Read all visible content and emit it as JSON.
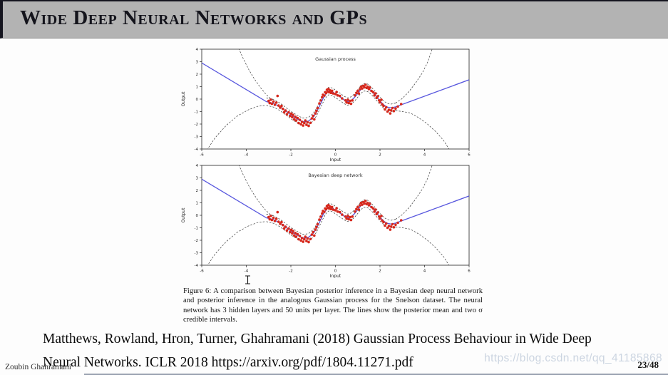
{
  "header": {
    "title": "Wide Deep Neural Networks and GPs"
  },
  "figure": {
    "caption": "Figure 6:  A comparison between Bayesian posterior inference in a Bayesian deep neural network and posterior inference in the analogous Gaussian process for the Snelson dataset. The neural network has 3 hidden layers and 50 units per layer. The lines show the posterior mean and two σ credible intervals."
  },
  "citation": {
    "lines": [
      "Matthews, Rowland, Hron, Turner, Ghahramani (2018) Gaussian Process Behaviour in Wide Deep",
      "Neural Networks. ICLR 2018 https://arxiv.org/pdf/1804.11271.pdf"
    ]
  },
  "watermark": "https://blog.csdn.net/qq_41185868",
  "footer": {
    "author": "Zoubin Ghahramani",
    "page": "23/48"
  },
  "chart_data": {
    "type": "scatter",
    "charts": [
      {
        "title": "Gaussian process"
      },
      {
        "title": "Bayesian deep network"
      }
    ],
    "shared": {
      "xlabel": "Input",
      "ylabel": "Output",
      "xlim": [
        -6,
        6
      ],
      "ylim": [
        -4,
        4
      ],
      "xticks": [
        -6,
        -4,
        -2,
        0,
        2,
        4,
        6
      ],
      "yticks": [
        -4,
        -3,
        -2,
        -1,
        0,
        1,
        2,
        3,
        4
      ],
      "grid": false,
      "colors": {
        "mean_line": "#5857de",
        "points": "#d6281c",
        "dashed": "#3a3a3a",
        "frame": "#222222"
      },
      "mean_line": [
        [
          -6,
          2.9
        ],
        [
          -3.1,
          -0.2
        ],
        [
          -2.8,
          -0.33
        ],
        [
          -2.5,
          -0.6
        ],
        [
          -2.2,
          -1.0
        ],
        [
          -1.9,
          -1.4
        ],
        [
          -1.7,
          -1.6
        ],
        [
          -1.5,
          -1.8
        ],
        [
          -1.35,
          -1.82
        ],
        [
          -1.2,
          -1.75
        ],
        [
          -1.0,
          -1.45
        ],
        [
          -0.85,
          -1.05
        ],
        [
          -0.7,
          -0.5
        ],
        [
          -0.55,
          0.05
        ],
        [
          -0.4,
          0.5
        ],
        [
          -0.3,
          0.65
        ],
        [
          -0.15,
          0.6
        ],
        [
          0.0,
          0.42
        ],
        [
          0.2,
          0.18
        ],
        [
          0.4,
          -0.08
        ],
        [
          0.55,
          -0.2
        ],
        [
          0.7,
          -0.12
        ],
        [
          0.85,
          0.12
        ],
        [
          1.0,
          0.45
        ],
        [
          1.15,
          0.78
        ],
        [
          1.3,
          0.95
        ],
        [
          1.45,
          0.9
        ],
        [
          1.6,
          0.68
        ],
        [
          1.75,
          0.4
        ],
        [
          1.9,
          0.08
        ],
        [
          2.05,
          -0.25
        ],
        [
          2.2,
          -0.5
        ],
        [
          2.35,
          -0.65
        ],
        [
          2.5,
          -0.7
        ],
        [
          2.7,
          -0.62
        ],
        [
          6,
          1.55
        ]
      ],
      "band_offset": 0.3,
      "band_range": [
        -3.1,
        2.7
      ],
      "outer_dashed": {
        "left_upper": [
          [
            -4.4,
            4.3
          ],
          [
            -4.15,
            3.3
          ],
          [
            -3.9,
            2.4
          ],
          [
            -3.65,
            1.65
          ],
          [
            -3.4,
            1.0
          ],
          [
            -3.15,
            0.45
          ],
          [
            -2.95,
            0.1
          ],
          [
            -2.8,
            -0.03
          ]
        ],
        "left_lower": [
          [
            -5.85,
            -4.3
          ],
          [
            -5.4,
            -3.1
          ],
          [
            -4.9,
            -2.1
          ],
          [
            -4.4,
            -1.35
          ],
          [
            -3.9,
            -0.85
          ],
          [
            -3.5,
            -0.58
          ],
          [
            -3.15,
            -0.5
          ]
        ],
        "right_upper": [
          [
            2.7,
            -0.32
          ],
          [
            3.0,
            0.05
          ],
          [
            3.3,
            0.6
          ],
          [
            3.6,
            1.3
          ],
          [
            3.9,
            2.1
          ],
          [
            4.15,
            3.0
          ],
          [
            4.4,
            4.3
          ]
        ],
        "right_lower": [
          [
            2.7,
            -0.92
          ],
          [
            3.0,
            -1.0
          ],
          [
            3.35,
            -1.1
          ],
          [
            3.7,
            -1.45
          ],
          [
            4.1,
            -1.95
          ],
          [
            4.5,
            -2.6
          ],
          [
            4.85,
            -3.3
          ],
          [
            5.2,
            -4.3
          ]
        ]
      },
      "points": [
        [
          -3.0,
          -0.15
        ],
        [
          -2.95,
          -0.32
        ],
        [
          -2.9,
          -0.05
        ],
        [
          -2.85,
          -0.38
        ],
        [
          -2.78,
          -0.2
        ],
        [
          -2.72,
          -0.45
        ],
        [
          -2.65,
          -0.28
        ],
        [
          -2.6,
          0.25
        ],
        [
          -2.55,
          -0.52
        ],
        [
          -2.48,
          -0.68
        ],
        [
          -2.42,
          -0.55
        ],
        [
          -2.36,
          -0.78
        ],
        [
          -2.3,
          -1.05
        ],
        [
          -2.24,
          -0.92
        ],
        [
          -2.18,
          -1.22
        ],
        [
          -2.1,
          -1.06
        ],
        [
          -2.04,
          -1.35
        ],
        [
          -1.98,
          -1.16
        ],
        [
          -1.94,
          -1.45
        ],
        [
          -1.9,
          -1.27
        ],
        [
          -1.85,
          -1.62
        ],
        [
          -1.8,
          -1.42
        ],
        [
          -1.76,
          -1.72
        ],
        [
          -1.7,
          -1.52
        ],
        [
          -1.65,
          -1.92
        ],
        [
          -1.6,
          -1.66
        ],
        [
          -1.55,
          -2.02
        ],
        [
          -1.5,
          -1.82
        ],
        [
          -1.45,
          -2.12
        ],
        [
          -1.4,
          -1.92
        ],
        [
          -1.35,
          -1.72
        ],
        [
          -1.3,
          -2.06
        ],
        [
          -1.25,
          -1.86
        ],
        [
          -1.2,
          -2.15
        ],
        [
          -1.12,
          -1.9
        ],
        [
          -1.06,
          -1.55
        ],
        [
          -1.0,
          -1.35
        ],
        [
          -0.95,
          -1.62
        ],
        [
          -0.9,
          -1.15
        ],
        [
          -0.85,
          -0.95
        ],
        [
          -0.8,
          -0.72
        ],
        [
          -0.72,
          -0.35
        ],
        [
          -0.66,
          -0.1
        ],
        [
          -0.6,
          0.15
        ],
        [
          -0.56,
          0.35
        ],
        [
          -0.5,
          0.28
        ],
        [
          -0.46,
          0.55
        ],
        [
          -0.42,
          0.48
        ],
        [
          -0.38,
          0.75
        ],
        [
          -0.35,
          0.6
        ],
        [
          -0.31,
          0.82
        ],
        [
          -0.28,
          0.55
        ],
        [
          -0.24,
          0.7
        ],
        [
          -0.2,
          0.5
        ],
        [
          -0.15,
          0.66
        ],
        [
          -0.1,
          0.45
        ],
        [
          0.0,
          0.4
        ],
        [
          0.05,
          0.56
        ],
        [
          0.1,
          0.3
        ],
        [
          0.2,
          0.25
        ],
        [
          0.3,
          0.05
        ],
        [
          0.45,
          -0.1
        ],
        [
          0.5,
          -0.27
        ],
        [
          0.56,
          -0.05
        ],
        [
          0.6,
          -0.32
        ],
        [
          0.66,
          -0.15
        ],
        [
          0.7,
          -0.38
        ],
        [
          0.76,
          -0.1
        ],
        [
          0.88,
          0.3
        ],
        [
          0.94,
          0.5
        ],
        [
          1.0,
          0.66
        ],
        [
          1.05,
          0.45
        ],
        [
          1.1,
          0.8
        ],
        [
          1.15,
          1.0
        ],
        [
          1.2,
          0.85
        ],
        [
          1.25,
          1.06
        ],
        [
          1.3,
          0.95
        ],
        [
          1.35,
          1.15
        ],
        [
          1.4,
          0.9
        ],
        [
          1.45,
          1.0
        ],
        [
          1.5,
          0.8
        ],
        [
          1.55,
          0.92
        ],
        [
          1.62,
          0.65
        ],
        [
          1.7,
          0.55
        ],
        [
          1.75,
          0.3
        ],
        [
          1.8,
          0.46
        ],
        [
          1.85,
          0.1
        ],
        [
          1.9,
          0.22
        ],
        [
          1.96,
          -0.1
        ],
        [
          2.0,
          -0.26
        ],
        [
          2.06,
          -0.05
        ],
        [
          2.1,
          -0.42
        ],
        [
          2.16,
          -0.55
        ],
        [
          2.22,
          -0.82
        ],
        [
          2.28,
          -0.66
        ],
        [
          2.34,
          -1.0
        ],
        [
          2.4,
          -0.86
        ],
        [
          2.46,
          -1.15
        ],
        [
          2.5,
          -0.9
        ],
        [
          2.56,
          -0.72
        ],
        [
          2.62,
          -0.96
        ],
        [
          2.7,
          -0.76
        ],
        [
          2.8,
          -0.6
        ],
        [
          2.95,
          -0.4
        ]
      ]
    }
  }
}
